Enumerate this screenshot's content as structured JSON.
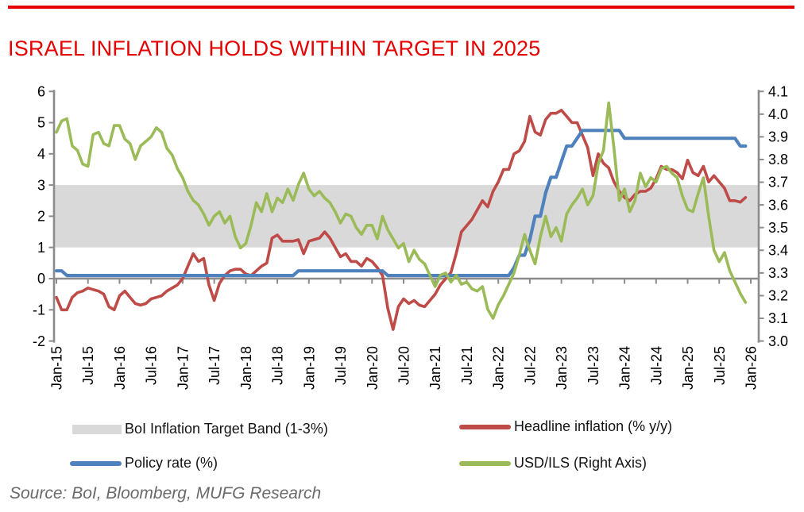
{
  "header": {
    "title": "ISRAEL INFLATION HOLDS WITHIN TARGET IN 2025"
  },
  "source": {
    "text": "Source: BoI, Bloomberg, MUFG Research"
  },
  "colors": {
    "accent_red": "#e60000",
    "inflation_line": "#be4b48",
    "policy_line": "#4f81bd",
    "usdils_line": "#9bbb59",
    "target_band": "#d9d9d9",
    "axis_gray": "#8c8c8c"
  },
  "chart_data": {
    "type": "line",
    "title": "ISRAEL INFLATION HOLDS WITHIN TARGET IN 2025",
    "grid": false,
    "legend_position": "bottom",
    "x_frequency": "monthly",
    "x_range": [
      "Jan-15",
      "Jan-26"
    ],
    "x_tick_labels": [
      "Jan-15",
      "Jul-15",
      "Jan-16",
      "Jul-16",
      "Jan-17",
      "Jul-17",
      "Jan-18",
      "Jul-18",
      "Jan-19",
      "Jul-19",
      "Jan-20",
      "Jul-20",
      "Jan-21",
      "Jul-21",
      "Jan-22",
      "Jul-22",
      "Jan-23",
      "Jul-23",
      "Jan-24",
      "Jul-24",
      "Jan-25",
      "Jul-25",
      "Jan-26"
    ],
    "left_axis": {
      "ylim": [
        -2,
        6
      ],
      "tick_labels": [
        "6",
        "5",
        "4",
        "3",
        "2",
        "1",
        "0",
        "-1",
        "-2"
      ]
    },
    "right_axis": {
      "ylim": [
        3.0,
        4.1
      ],
      "tick_labels": [
        "4.1",
        "4.0",
        "3.9",
        "3.8",
        "3.7",
        "3.6",
        "3.5",
        "3.4",
        "3.3",
        "3.2",
        "3.1",
        "3.0"
      ]
    },
    "target_band": {
      "label": "BoI Inflation Target Band (1-3%)",
      "from": 1,
      "to": 3,
      "axis": "left",
      "color": "#d9d9d9"
    },
    "series": [
      {
        "key": "inflation",
        "name": "Headline inflation (% y/y)",
        "axis": "left",
        "color": "#be4b48",
        "values": [
          -0.6,
          -1.0,
          -1.0,
          -0.6,
          -0.45,
          -0.4,
          -0.3,
          -0.35,
          -0.4,
          -0.5,
          -0.9,
          -1.0,
          -0.55,
          -0.4,
          -0.6,
          -0.8,
          -0.85,
          -0.8,
          -0.65,
          -0.6,
          -0.55,
          -0.4,
          -0.3,
          -0.2,
          0.0,
          0.4,
          0.8,
          0.55,
          0.65,
          -0.2,
          -0.7,
          -0.15,
          0.1,
          0.25,
          0.3,
          0.3,
          0.15,
          0.1,
          0.25,
          0.4,
          0.5,
          1.3,
          1.4,
          1.2,
          1.2,
          1.2,
          1.25,
          0.8,
          1.2,
          1.25,
          1.3,
          1.5,
          1.3,
          1.0,
          0.7,
          0.8,
          0.55,
          0.55,
          0.4,
          0.65,
          0.55,
          0.35,
          0.1,
          -0.95,
          -1.63,
          -0.9,
          -0.65,
          -0.8,
          -0.7,
          -0.85,
          -0.9,
          -0.7,
          -0.5,
          -0.2,
          0.0,
          0.2,
          0.8,
          1.5,
          1.7,
          1.9,
          2.2,
          2.5,
          2.3,
          2.8,
          3.1,
          3.5,
          3.5,
          4.0,
          4.1,
          4.4,
          5.2,
          4.7,
          4.6,
          5.1,
          5.3,
          5.3,
          5.4,
          5.2,
          5.0,
          5.0,
          4.6,
          4.2,
          3.3,
          4.0,
          3.7,
          3.55,
          3.1,
          2.8,
          2.6,
          2.5,
          2.7,
          2.8,
          2.8,
          2.9,
          3.2,
          3.6,
          3.5,
          3.5,
          3.4,
          3.2,
          3.8,
          3.4,
          3.3,
          3.6,
          3.1,
          3.3,
          3.1,
          2.9,
          2.5,
          2.5,
          2.45,
          2.6
        ]
      },
      {
        "key": "policy_rate",
        "name": "Policy rate (%)",
        "axis": "left",
        "color": "#4f81bd",
        "values": [
          0.25,
          0.25,
          0.1,
          0.1,
          0.1,
          0.1,
          0.1,
          0.1,
          0.1,
          0.1,
          0.1,
          0.1,
          0.1,
          0.1,
          0.1,
          0.1,
          0.1,
          0.1,
          0.1,
          0.1,
          0.1,
          0.1,
          0.1,
          0.1,
          0.1,
          0.1,
          0.1,
          0.1,
          0.1,
          0.1,
          0.1,
          0.1,
          0.1,
          0.1,
          0.1,
          0.1,
          0.1,
          0.1,
          0.1,
          0.1,
          0.1,
          0.1,
          0.1,
          0.1,
          0.1,
          0.1,
          0.25,
          0.25,
          0.25,
          0.25,
          0.25,
          0.25,
          0.25,
          0.25,
          0.25,
          0.25,
          0.25,
          0.25,
          0.25,
          0.25,
          0.25,
          0.25,
          0.25,
          0.1,
          0.1,
          0.1,
          0.1,
          0.1,
          0.1,
          0.1,
          0.1,
          0.1,
          0.1,
          0.1,
          0.1,
          0.1,
          0.1,
          0.1,
          0.1,
          0.1,
          0.1,
          0.1,
          0.1,
          0.1,
          0.1,
          0.1,
          0.1,
          0.35,
          0.75,
          0.75,
          1.25,
          2.0,
          2.0,
          2.75,
          3.25,
          3.25,
          3.75,
          4.25,
          4.25,
          4.5,
          4.75,
          4.75,
          4.75,
          4.75,
          4.75,
          4.75,
          4.75,
          4.75,
          4.5,
          4.5,
          4.5,
          4.5,
          4.5,
          4.5,
          4.5,
          4.5,
          4.5,
          4.5,
          4.5,
          4.5,
          4.5,
          4.5,
          4.5,
          4.5,
          4.5,
          4.5,
          4.5,
          4.5,
          4.5,
          4.5,
          4.25,
          4.25
        ]
      },
      {
        "key": "usd_ils",
        "name": "USD/ILS (Right Axis)",
        "axis": "right",
        "color": "#9bbb59",
        "values": [
          3.92,
          3.97,
          3.98,
          3.86,
          3.84,
          3.78,
          3.77,
          3.91,
          3.92,
          3.87,
          3.86,
          3.95,
          3.95,
          3.89,
          3.87,
          3.8,
          3.86,
          3.88,
          3.9,
          3.94,
          3.92,
          3.85,
          3.82,
          3.76,
          3.72,
          3.66,
          3.62,
          3.6,
          3.56,
          3.51,
          3.55,
          3.57,
          3.52,
          3.55,
          3.46,
          3.41,
          3.43,
          3.51,
          3.61,
          3.57,
          3.65,
          3.57,
          3.63,
          3.61,
          3.67,
          3.62,
          3.69,
          3.74,
          3.67,
          3.64,
          3.66,
          3.63,
          3.61,
          3.57,
          3.52,
          3.56,
          3.55,
          3.5,
          3.47,
          3.51,
          3.51,
          3.45,
          3.55,
          3.49,
          3.45,
          3.41,
          3.43,
          3.35,
          3.4,
          3.36,
          3.34,
          3.29,
          3.24,
          3.29,
          3.3,
          3.26,
          3.29,
          3.25,
          3.26,
          3.23,
          3.22,
          3.24,
          3.14,
          3.1,
          3.16,
          3.2,
          3.25,
          3.3,
          3.38,
          3.47,
          3.4,
          3.34,
          3.46,
          3.55,
          3.46,
          3.5,
          3.44,
          3.56,
          3.6,
          3.63,
          3.67,
          3.6,
          3.64,
          3.78,
          3.84,
          4.05,
          3.85,
          3.62,
          3.67,
          3.57,
          3.62,
          3.74,
          3.68,
          3.72,
          3.7,
          3.76,
          3.77,
          3.74,
          3.72,
          3.64,
          3.58,
          3.57,
          3.65,
          3.72,
          3.55,
          3.4,
          3.35,
          3.39,
          3.31,
          3.26,
          3.21,
          3.17
        ]
      }
    ]
  }
}
